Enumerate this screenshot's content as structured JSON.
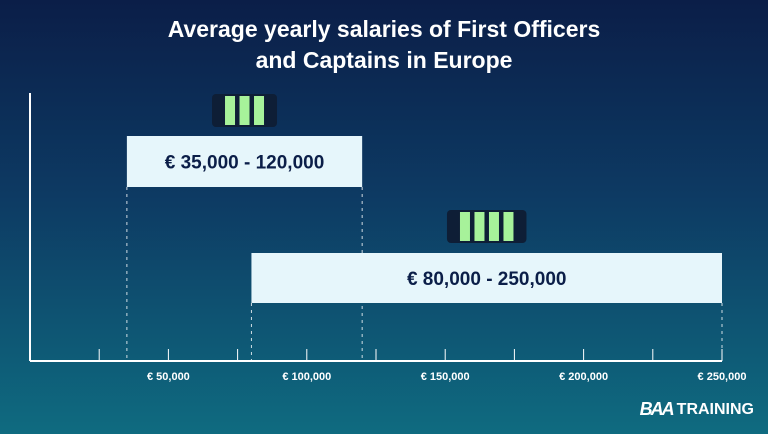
{
  "title": {
    "line1": "Average yearly salaries of First Officers",
    "line2": "and Captains in Europe"
  },
  "chart_data": {
    "type": "range-bar",
    "title": "Average yearly salaries of First Officers and Captains in Europe",
    "xlim": [
      0,
      250000
    ],
    "ticks": [
      {
        "value": 25000,
        "label": ""
      },
      {
        "value": 50000,
        "label": "€ 50,000"
      },
      {
        "value": 75000,
        "label": ""
      },
      {
        "value": 100000,
        "label": "€ 100,000"
      },
      {
        "value": 125000,
        "label": ""
      },
      {
        "value": 150000,
        "label": "€ 150,000"
      },
      {
        "value": 175000,
        "label": ""
      },
      {
        "value": 200000,
        "label": "€ 200,000"
      },
      {
        "value": 225000,
        "label": ""
      },
      {
        "value": 250000,
        "label": "€ 250,000"
      }
    ],
    "series": [
      {
        "name": "First Officers",
        "rank_stripes": 3,
        "min": 35000,
        "max": 120000,
        "label": "€ 35,000 - 120,000"
      },
      {
        "name": "Captains",
        "rank_stripes": 4,
        "min": 80000,
        "max": 250000,
        "label": "€ 80,000 - 250,000"
      }
    ],
    "colors": {
      "bar_fill": "#e6f6fb",
      "bar_text": "#0b1e48",
      "axis": "#ffffff",
      "epaulette": "#0e1e36",
      "stripe": "#a7f29a"
    }
  },
  "logo": {
    "mark": "BAA",
    "text": "TRAINING"
  }
}
